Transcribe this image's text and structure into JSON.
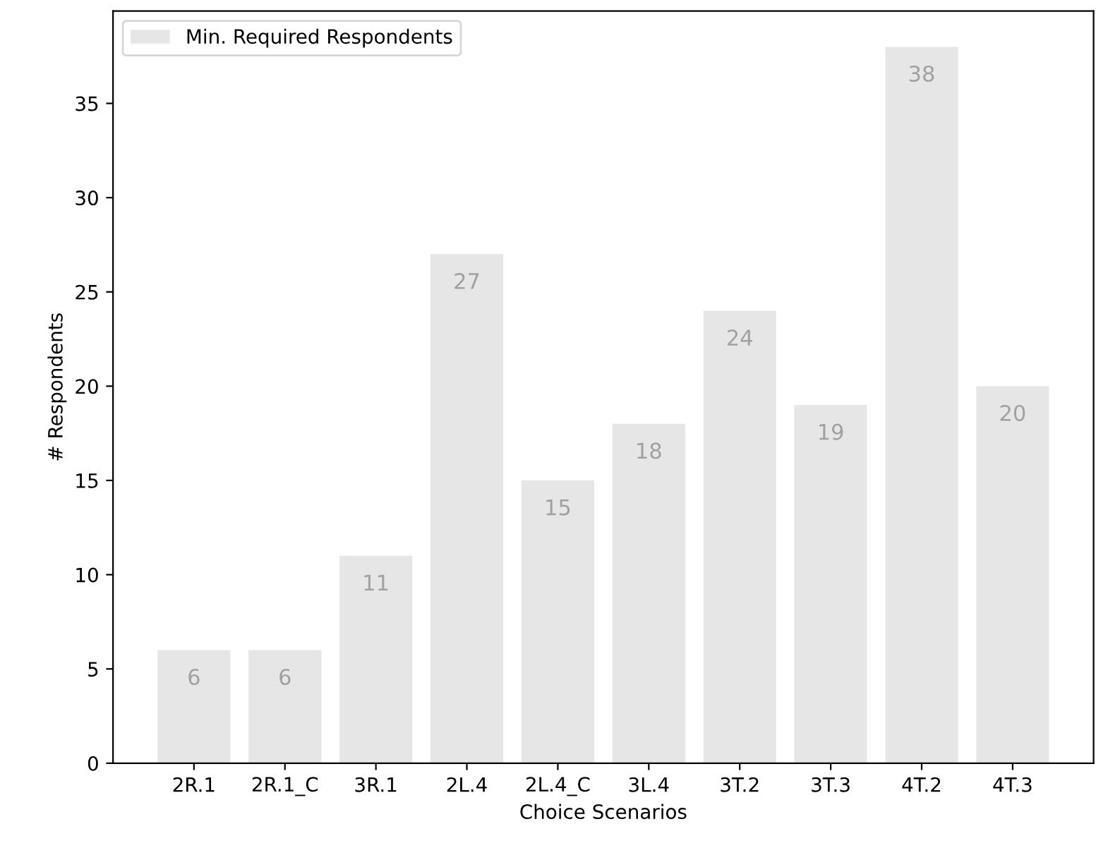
{
  "chart_data": {
    "type": "bar",
    "xlabel": "Choice Scenarios",
    "ylabel": "# Respondents",
    "categories": [
      "2R.1",
      "2R.1_C",
      "3R.1",
      "2L.4",
      "2L.4_C",
      "3L.4",
      "3T.2",
      "3T.3",
      "4T.2",
      "4T.3"
    ],
    "series": [
      {
        "name": "Min. Required Respondents",
        "color": "#e6e6e6",
        "values": [
          6,
          6,
          11,
          27,
          15,
          18,
          24,
          19,
          38,
          20
        ]
      }
    ],
    "ylim": [
      0,
      39.9
    ],
    "yticks": [
      0,
      5,
      10,
      15,
      20,
      25,
      30,
      35
    ],
    "data_labels": true,
    "legend": "top left",
    "grid": false
  }
}
